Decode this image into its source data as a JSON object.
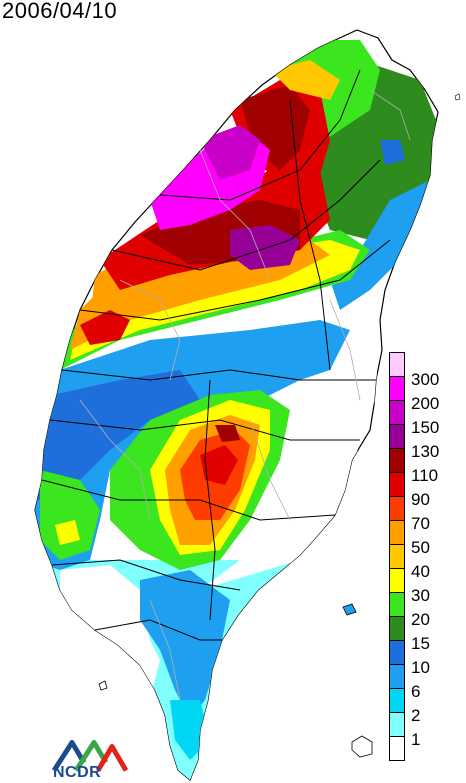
{
  "date_label": "2006/04/10",
  "legend": {
    "levels": [
      {
        "label": "300",
        "color": "#ffc8ff"
      },
      {
        "label": "200",
        "color": "#ff00ff"
      },
      {
        "label": "150",
        "color": "#c800c8"
      },
      {
        "label": "130",
        "color": "#960096"
      },
      {
        "label": "110",
        "color": "#a00000"
      },
      {
        "label": "90",
        "color": "#e10000"
      },
      {
        "label": "70",
        "color": "#ff3c00"
      },
      {
        "label": "50",
        "color": "#ffa000"
      },
      {
        "label": "40",
        "color": "#ffc800"
      },
      {
        "label": "30",
        "color": "#ffff00"
      },
      {
        "label": "20",
        "color": "#3ce61e"
      },
      {
        "label": "15",
        "color": "#2e8b1e"
      },
      {
        "label": "10",
        "color": "#1e6edc"
      },
      {
        "label": "6",
        "color": "#1e9ff0"
      },
      {
        "label": "2",
        "color": "#00d7f5"
      },
      {
        "label": "1",
        "color": "#80ffff"
      },
      {
        "label": "",
        "color": "#ffffff"
      }
    ]
  },
  "logo": {
    "text": "NCDR",
    "icon": "ncdr-logo-icon"
  },
  "colors": {
    "county_border": "#000000",
    "township_border": "#b0b0b0"
  }
}
